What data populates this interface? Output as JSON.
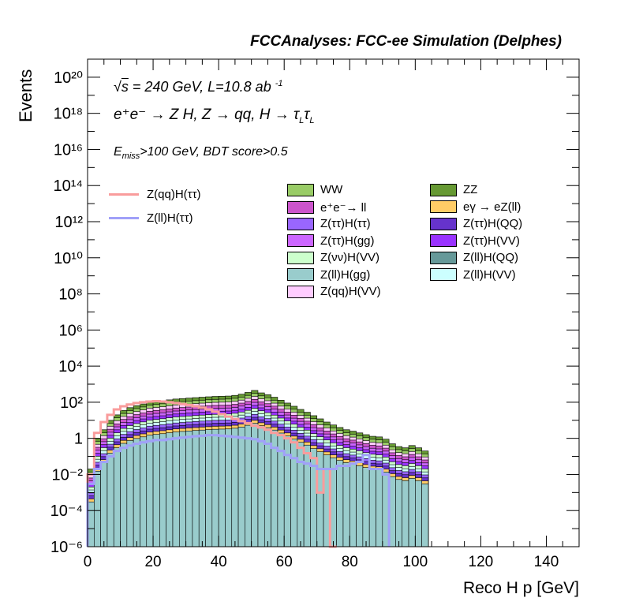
{
  "header": {
    "title": "FCCAnalyses: FCC-ee Simulation (Delphes)"
  },
  "annotations": {
    "line1_sqrt": "s",
    "line1_rest": " = 240 GeV, L=10.8 ab",
    "line1_exp": "-1",
    "line2": "e⁺e⁻ → Z H, Z → qq, H → τ",
    "line2_sub1": "L",
    "line2_mid": "τ",
    "line2_sub2": "L",
    "line3_pre": "E",
    "line3_sub": "miss",
    "line3_post": ">100 GeV, BDT score>0.5"
  },
  "legend": {
    "lines": [
      {
        "label": "Z(qq)H(ττ)",
        "color": "#f99c9c"
      },
      {
        "label": "Z(ll)H(ττ)",
        "color": "#a0a0f8"
      }
    ],
    "fills": [
      {
        "label": "WW",
        "color": "#99cc66"
      },
      {
        "label": "ZZ",
        "color": "#669933"
      },
      {
        "label": "e⁺e⁻→ ll",
        "color": "#cc55cc"
      },
      {
        "label": "eγ → eZ(ll)",
        "color": "#ffcc66"
      },
      {
        "label": "Z(ττ)H(ττ)",
        "color": "#9966ff"
      },
      {
        "label": "Z(ττ)H(QQ)",
        "color": "#6633cc"
      },
      {
        "label": "Z(ττ)H(gg)",
        "color": "#cc66ff"
      },
      {
        "label": "Z(ττ)H(VV)",
        "color": "#9933ff"
      },
      {
        "label": "Z(νν)H(VV)",
        "color": "#ccffcc"
      },
      {
        "label": "Z(ll)H(QQ)",
        "color": "#669999"
      },
      {
        "label": "Z(ll)H(gg)",
        "color": "#99cccc"
      },
      {
        "label": "Z(ll)H(VV)",
        "color": "#ccffff"
      },
      {
        "label": "Z(qq)H(VV)",
        "color": "#ffccff"
      }
    ]
  },
  "chart_data": {
    "type": "bar",
    "title": "FCCAnalyses: FCC-ee Simulation (Delphes)",
    "xlabel": "Reco H p [GeV]",
    "ylabel": "Events",
    "xlim": [
      0,
      150
    ],
    "ylim": [
      1e-06,
      1e+21
    ],
    "yscale": "log",
    "x_ticks": [
      0,
      20,
      40,
      60,
      80,
      100,
      120,
      140
    ],
    "y_ticks": [
      "10⁻⁶",
      "10⁻⁴",
      "10⁻²",
      "1",
      "10²",
      "10⁴",
      "10⁶",
      "10⁸",
      "10¹⁰",
      "10¹²",
      "10¹⁴",
      "10¹⁶",
      "10¹⁸",
      "10²⁰"
    ],
    "bin_width": 2,
    "stack_order": [
      "Z(ll)H(gg)",
      "eγ → eZ(ll)",
      "Z(ττ)H(QQ)",
      "Z(ττ)H(ττ)",
      "Z(ll)H(VV)",
      "Z(νν)H(VV)",
      "Z(ττ)H(VV)",
      "Z(ττ)H(gg)",
      "e⁺e⁻→ ll",
      "Z(qq)H(VV)",
      "WW",
      "ZZ"
    ],
    "stack_totals": {
      "x": [
        1,
        3,
        5,
        7,
        9,
        11,
        13,
        15,
        17,
        19,
        21,
        23,
        25,
        27,
        29,
        31,
        33,
        35,
        37,
        39,
        41,
        43,
        45,
        47,
        49,
        51,
        53,
        55,
        57,
        59,
        61,
        63,
        65,
        67,
        69,
        71,
        73,
        75,
        77,
        79,
        81,
        83,
        85,
        87,
        89,
        91,
        93,
        95,
        97,
        99,
        101,
        103
      ],
      "values": [
        0.02,
        1,
        3,
        10,
        20,
        35,
        50,
        65,
        80,
        100,
        110,
        120,
        135,
        150,
        160,
        170,
        180,
        190,
        200,
        210,
        215,
        220,
        240,
        280,
        350,
        450,
        330,
        260,
        190,
        130,
        90,
        60,
        40,
        28,
        18,
        12,
        8,
        5.5,
        4,
        3,
        2.5,
        2,
        1.6,
        1.3,
        1.2,
        0.9,
        0.5,
        0.35,
        0.3,
        0.4,
        0.3,
        0.2
      ]
    },
    "series": [
      {
        "name": "Z(qq)H(ττ)",
        "x": [
          1,
          3,
          5,
          7,
          9,
          11,
          13,
          15,
          17,
          19,
          21,
          23,
          25,
          27,
          29,
          31,
          33,
          35,
          37,
          39,
          41,
          43,
          45,
          47,
          49,
          51,
          53,
          55,
          57,
          59,
          61,
          63,
          65,
          67,
          69,
          71,
          73,
          75
        ],
        "values": [
          0.01,
          2,
          8,
          20,
          40,
          60,
          75,
          90,
          100,
          110,
          115,
          110,
          100,
          90,
          80,
          70,
          60,
          50,
          40,
          30,
          22,
          16,
          12,
          9,
          7,
          5,
          4,
          3,
          2,
          1.5,
          1,
          0.6,
          0.3,
          0.15,
          0.08,
          0.001,
          0.02,
          1e-06
        ]
      },
      {
        "name": "Z(ll)H(ττ)",
        "x": [
          1,
          3,
          5,
          7,
          9,
          11,
          13,
          15,
          17,
          19,
          21,
          23,
          25,
          27,
          29,
          31,
          33,
          35,
          37,
          39,
          41,
          43,
          45,
          47,
          49,
          51,
          53,
          55,
          57,
          59,
          61,
          63,
          65,
          67,
          69,
          71,
          73,
          75,
          77,
          79,
          81,
          83,
          85,
          87,
          89,
          91
        ],
        "values": [
          0.003,
          0.02,
          0.05,
          0.1,
          0.2,
          0.3,
          0.4,
          0.5,
          0.6,
          0.7,
          0.8,
          0.8,
          0.9,
          1,
          1.1,
          1.2,
          1.3,
          1.4,
          1.5,
          1.5,
          1.4,
          1.3,
          1.2,
          1.1,
          1,
          0.9,
          0.7,
          0.5,
          0.3,
          0.2,
          0.12,
          0.08,
          0.05,
          0.04,
          0.03,
          0.02,
          0.02,
          0.02,
          0.03,
          0.03,
          0.04,
          0.05,
          0.12,
          0.02,
          0.02,
          0.01
        ]
      }
    ]
  }
}
